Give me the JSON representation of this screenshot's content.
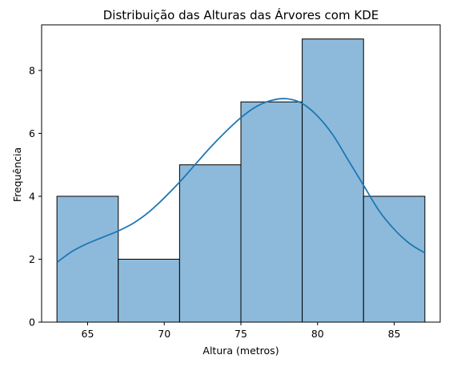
{
  "chart_data": {
    "type": "bar",
    "subtype": "histogram-with-kde",
    "title": "Distribuição das Alturas das Árvores com KDE",
    "xlabel": "Altura (metros)",
    "ylabel": "Frequência",
    "xlim": [
      62.0,
      88.0
    ],
    "ylim": [
      0,
      9.45
    ],
    "xticks": [
      65,
      70,
      75,
      80,
      85
    ],
    "yticks": [
      0,
      2,
      4,
      6,
      8
    ],
    "grid": false,
    "bins": [
      {
        "x0": 63,
        "x1": 67,
        "count": 4
      },
      {
        "x0": 67,
        "x1": 71,
        "count": 2
      },
      {
        "x0": 71,
        "x1": 75,
        "count": 5
      },
      {
        "x0": 75,
        "x1": 79,
        "count": 7
      },
      {
        "x0": 79,
        "x1": 83,
        "count": 9
      },
      {
        "x0": 83,
        "x1": 87,
        "count": 4
      }
    ],
    "kde": {
      "x": [
        63,
        64,
        65,
        66,
        67,
        68,
        69,
        70,
        71,
        72,
        73,
        74,
        75,
        76,
        77,
        78,
        79,
        80,
        81,
        82,
        83,
        84,
        85,
        86,
        87
      ],
      "y": [
        1.9,
        2.25,
        2.5,
        2.7,
        2.9,
        3.15,
        3.5,
        3.95,
        4.45,
        5.0,
        5.55,
        6.05,
        6.5,
        6.85,
        7.05,
        7.1,
        6.95,
        6.55,
        5.95,
        5.15,
        4.35,
        3.55,
        2.95,
        2.5,
        2.2
      ]
    },
    "colors": {
      "bar_fill": "#8dbadb",
      "bar_edge": "#000000",
      "kde_line": "#1f77b4"
    }
  }
}
